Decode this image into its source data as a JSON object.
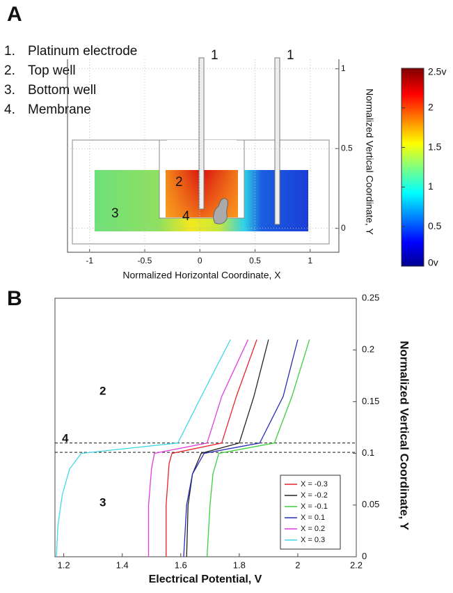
{
  "chart_data": [
    {
      "type": "field-diagram",
      "panel_label": "A",
      "legend_items": [
        {
          "number": "1.",
          "label": "Platinum electrode"
        },
        {
          "number": "2.",
          "label": "Top well"
        },
        {
          "number": "3.",
          "label": "Bottom well"
        },
        {
          "number": "4.",
          "label": "Membrane"
        }
      ],
      "annotations": [
        "1",
        "1",
        "2",
        "3",
        "4"
      ],
      "xlabel": "Normalized Horizontal Coordinate, X",
      "ylabel": "Normalized Vertical Coordinate, Y",
      "xlim": [
        -1.2,
        1.26
      ],
      "ylim": [
        -0.15,
        1.06
      ],
      "xticks": [
        -1,
        -0.5,
        0,
        0.5,
        1
      ],
      "yticks": [
        0,
        0.5,
        1
      ],
      "colorbar": {
        "lim": [
          0,
          2.5
        ],
        "ticks": [
          {
            "value": 0,
            "label": "0v"
          },
          0.5,
          1,
          1.5,
          2,
          {
            "value": 2.5,
            "label": "2.5v"
          }
        ]
      }
    },
    {
      "type": "line",
      "panel_label": "B",
      "annotations": [
        "2",
        "4",
        "3"
      ],
      "xlabel": "Electrical Potential, V",
      "ylabel": "Normalized Vertical Coordinate, Y",
      "xlim": [
        1.17,
        2.2
      ],
      "ylim": [
        0,
        0.25
      ],
      "xticks": [
        1.2,
        1.4,
        1.6,
        1.8,
        2,
        2.2
      ],
      "yticks": [
        0,
        0.05,
        0.1,
        0.15,
        0.2,
        0.25
      ],
      "hlines": [
        0.11,
        0.101
      ],
      "legend": "lower right",
      "series": [
        {
          "name": "X = -0.3",
          "color": "#e8232a",
          "x": [
            1.55,
            1.55,
            1.56,
            1.57,
            1.74,
            1.79,
            1.86
          ],
          "y": [
            0,
            0.05,
            0.09,
            0.1,
            0.11,
            0.155,
            0.21
          ]
        },
        {
          "name": "X = -0.2",
          "color": "#222222",
          "x": [
            1.62,
            1.625,
            1.64,
            1.67,
            1.8,
            1.85,
            1.9
          ],
          "y": [
            0,
            0.05,
            0.08,
            0.1,
            0.11,
            0.155,
            0.21
          ]
        },
        {
          "name": "X = -0.1",
          "color": "#3ccf3c",
          "x": [
            1.69,
            1.7,
            1.71,
            1.73,
            1.92,
            1.98,
            2.04
          ],
          "y": [
            0,
            0.05,
            0.08,
            0.1,
            0.11,
            0.155,
            0.21
          ]
        },
        {
          "name": "X = 0.1",
          "color": "#2a2ab8",
          "x": [
            1.61,
            1.62,
            1.64,
            1.68,
            1.87,
            1.95,
            2.0
          ],
          "y": [
            0,
            0.05,
            0.08,
            0.1,
            0.11,
            0.155,
            0.21
          ]
        },
        {
          "name": "X = 0.2",
          "color": "#e03ce0",
          "x": [
            1.49,
            1.49,
            1.5,
            1.51,
            1.69,
            1.74,
            1.83
          ],
          "y": [
            0,
            0.05,
            0.085,
            0.1,
            0.11,
            0.155,
            0.21
          ]
        },
        {
          "name": "X = 0.3",
          "color": "#3fd8e6",
          "x": [
            1.175,
            1.18,
            1.195,
            1.22,
            1.26,
            1.59,
            1.67,
            1.77
          ],
          "y": [
            0,
            0.03,
            0.06,
            0.085,
            0.1,
            0.11,
            0.155,
            0.21
          ]
        }
      ]
    }
  ]
}
